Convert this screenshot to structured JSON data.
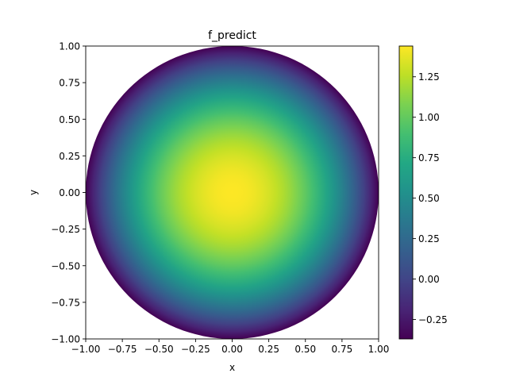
{
  "chart_data": {
    "type": "heatmap",
    "title": "f_predict",
    "xlabel": "x",
    "ylabel": "y",
    "xlim": [
      -1.0,
      1.0
    ],
    "ylim": [
      -1.0,
      1.0
    ],
    "x_ticks": [
      -1.0,
      -0.75,
      -0.5,
      -0.25,
      0.0,
      0.25,
      0.5,
      0.75,
      1.0
    ],
    "x_tick_labels": [
      "−1.00",
      "−0.75",
      "−0.50",
      "−0.25",
      "0.00",
      "0.25",
      "0.50",
      "0.75",
      "1.00"
    ],
    "y_ticks": [
      1.0,
      0.75,
      0.5,
      0.25,
      0.0,
      -0.25,
      -0.5,
      -0.75,
      -1.0
    ],
    "y_tick_labels": [
      "1.00",
      "0.75",
      "0.50",
      "0.25",
      "0.00",
      "−0.25",
      "−0.50",
      "−0.75",
      "−1.00"
    ],
    "domain_shape": "unit disk",
    "value_at_center": 1.44,
    "value_at_edge": -0.37,
    "grid": false,
    "colormap": "viridis",
    "colorbar": {
      "range": [
        -0.37,
        1.44
      ],
      "ticks": [
        1.25,
        1.0,
        0.75,
        0.5,
        0.25,
        0.0,
        -0.25
      ],
      "tick_labels": [
        "1.25",
        "1.00",
        "0.75",
        "0.50",
        "0.25",
        "0.00",
        "−0.25"
      ]
    }
  }
}
